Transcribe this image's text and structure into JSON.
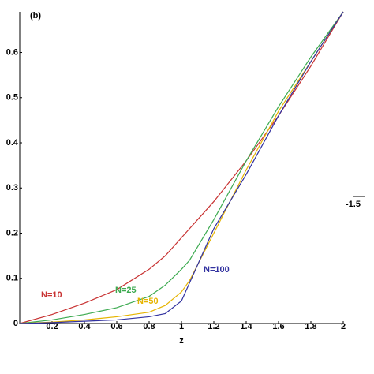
{
  "chart_data": {
    "type": "line",
    "title": "(b)",
    "x_label": "z",
    "x": [
      0,
      0.2,
      0.4,
      0.6,
      0.8,
      0.9,
      1,
      1.05,
      1.1,
      1.2,
      1.4,
      1.6,
      1.8,
      2
    ],
    "series": [
      {
        "name": "N=10",
        "color": "#c83232",
        "values": [
          0,
          0.02,
          0.045,
          0.075,
          0.12,
          0.15,
          0.19,
          0.21,
          0.23,
          0.27,
          0.36,
          0.46,
          0.57,
          0.69
        ]
      },
      {
        "name": "N=25",
        "color": "#3caa50",
        "values": [
          0,
          0.008,
          0.02,
          0.035,
          0.06,
          0.085,
          0.12,
          0.14,
          0.17,
          0.23,
          0.36,
          0.48,
          0.59,
          0.69
        ]
      },
      {
        "name": "N=50",
        "color": "#e6b400",
        "values": [
          0,
          0.003,
          0.008,
          0.015,
          0.025,
          0.04,
          0.07,
          0.095,
          0.13,
          0.2,
          0.34,
          0.47,
          0.58,
          0.69
        ]
      },
      {
        "name": "N=100",
        "color": "#3232a0",
        "values": [
          0,
          0.002,
          0.005,
          0.008,
          0.015,
          0.022,
          0.05,
          0.09,
          0.13,
          0.21,
          0.33,
          0.46,
          0.58,
          0.69
        ]
      }
    ],
    "xlim": [
      0,
      2
    ],
    "ylim": [
      0,
      0.69
    ],
    "xticks": [
      0.2,
      0.4,
      0.6,
      0.8,
      1,
      1.2,
      1.4,
      1.6,
      1.8,
      2
    ],
    "yticks": [
      0,
      0.1,
      0.2,
      0.3,
      0.4,
      0.5,
      0.6
    ],
    "annotations": [
      "-1.5"
    ]
  }
}
